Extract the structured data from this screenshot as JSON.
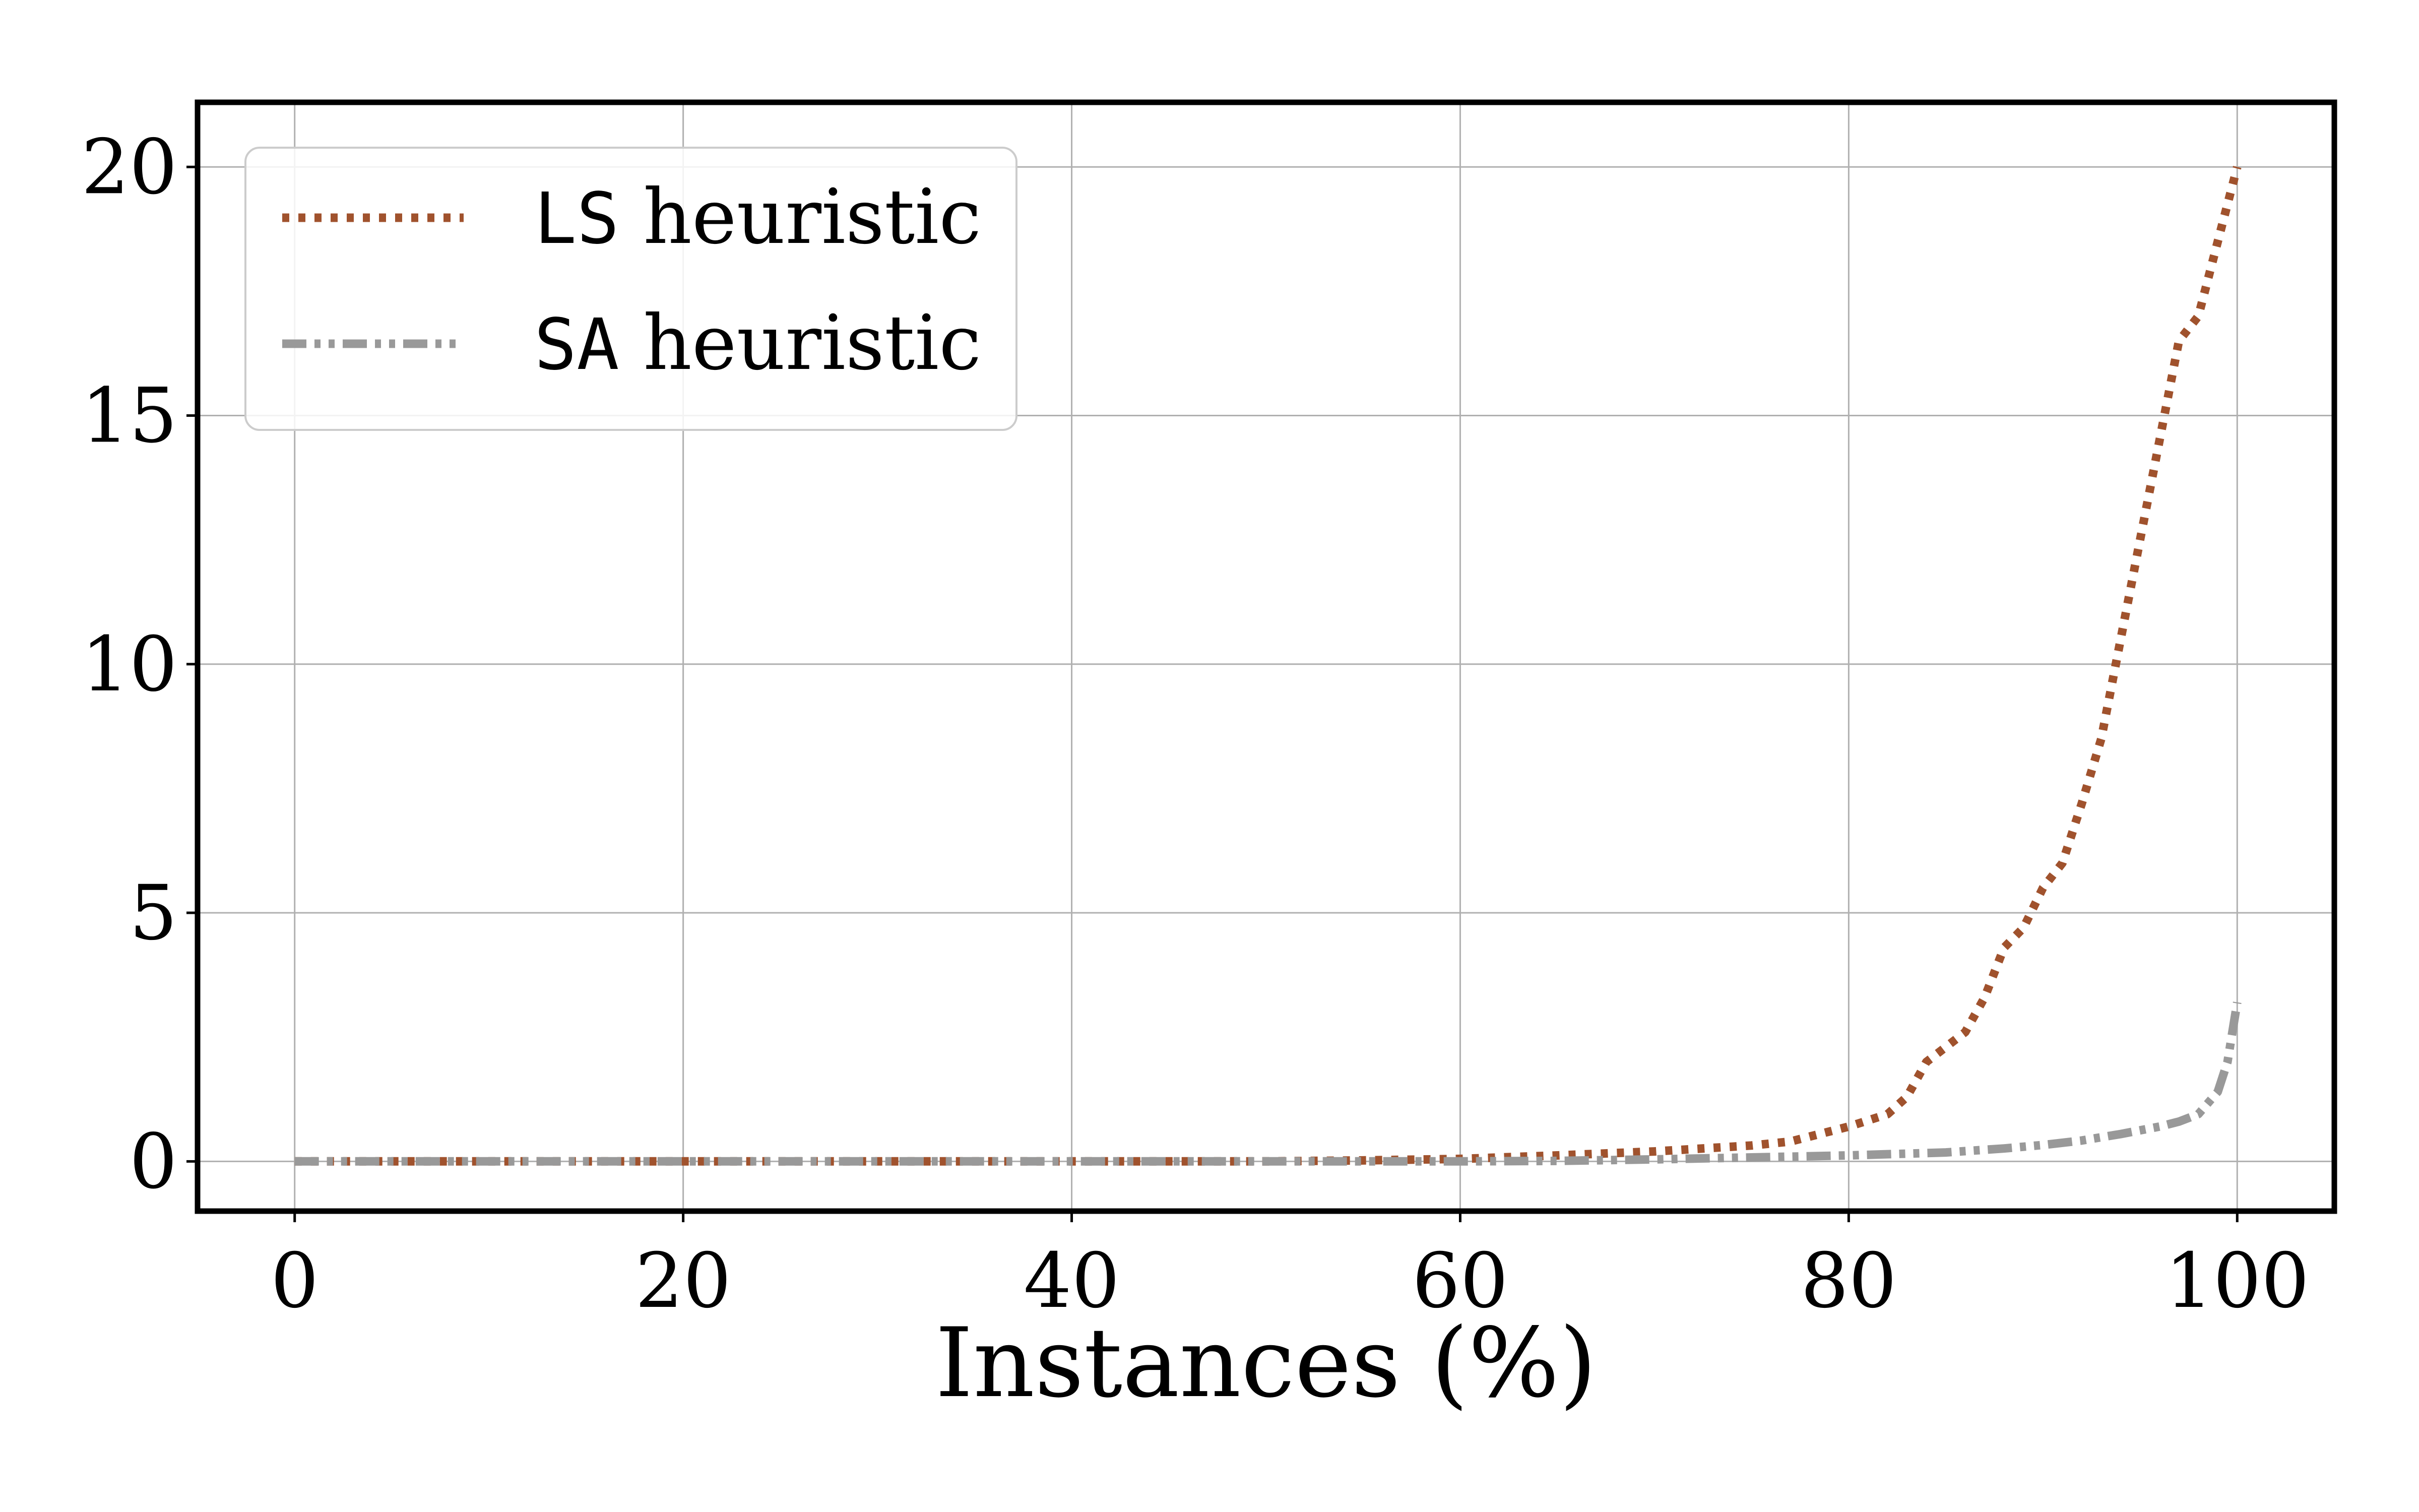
{
  "chart_data": {
    "type": "line",
    "title": "",
    "xlabel": "Instances (%)",
    "ylabel": "",
    "xlim": [
      -5,
      105
    ],
    "ylim": [
      -1,
      21.3
    ],
    "x_ticks": [
      0,
      20,
      40,
      60,
      80,
      100
    ],
    "y_ticks": [
      0,
      5,
      10,
      15,
      20
    ],
    "grid": true,
    "legend_position": "top-left",
    "series": [
      {
        "name": "LS heuristic",
        "name_code": "LS",
        "name_rest": " heuristic",
        "color": "#a0522d",
        "style": "dotted",
        "x": [
          0,
          10,
          20,
          30,
          40,
          50,
          55,
          60,
          65,
          70,
          75,
          77,
          78,
          80,
          82,
          83,
          84,
          86,
          87,
          88,
          89,
          90,
          91,
          92,
          93,
          94,
          95,
          96,
          97,
          98,
          99,
          100
        ],
        "y": [
          0,
          0,
          0,
          0,
          0,
          0,
          0.02,
          0.05,
          0.12,
          0.2,
          0.32,
          0.4,
          0.5,
          0.7,
          0.95,
          1.3,
          2.0,
          2.6,
          3.3,
          4.3,
          4.7,
          5.5,
          6.0,
          7.2,
          8.5,
          10.5,
          12.5,
          14.5,
          16.5,
          17.0,
          18.5,
          20.0
        ]
      },
      {
        "name": "SA heuristic",
        "name_code": "SA",
        "name_rest": " heuristic",
        "color": "#999999",
        "style": "dashdot",
        "x": [
          0,
          10,
          20,
          30,
          40,
          50,
          60,
          65,
          70,
          75,
          80,
          85,
          88,
          90,
          92,
          94,
          96,
          97,
          98,
          99,
          99.5,
          100
        ],
        "y": [
          0,
          0,
          0,
          0,
          0,
          0,
          0,
          0.01,
          0.04,
          0.08,
          0.12,
          0.18,
          0.26,
          0.33,
          0.42,
          0.55,
          0.7,
          0.8,
          0.95,
          1.4,
          2.0,
          3.2
        ]
      }
    ]
  }
}
